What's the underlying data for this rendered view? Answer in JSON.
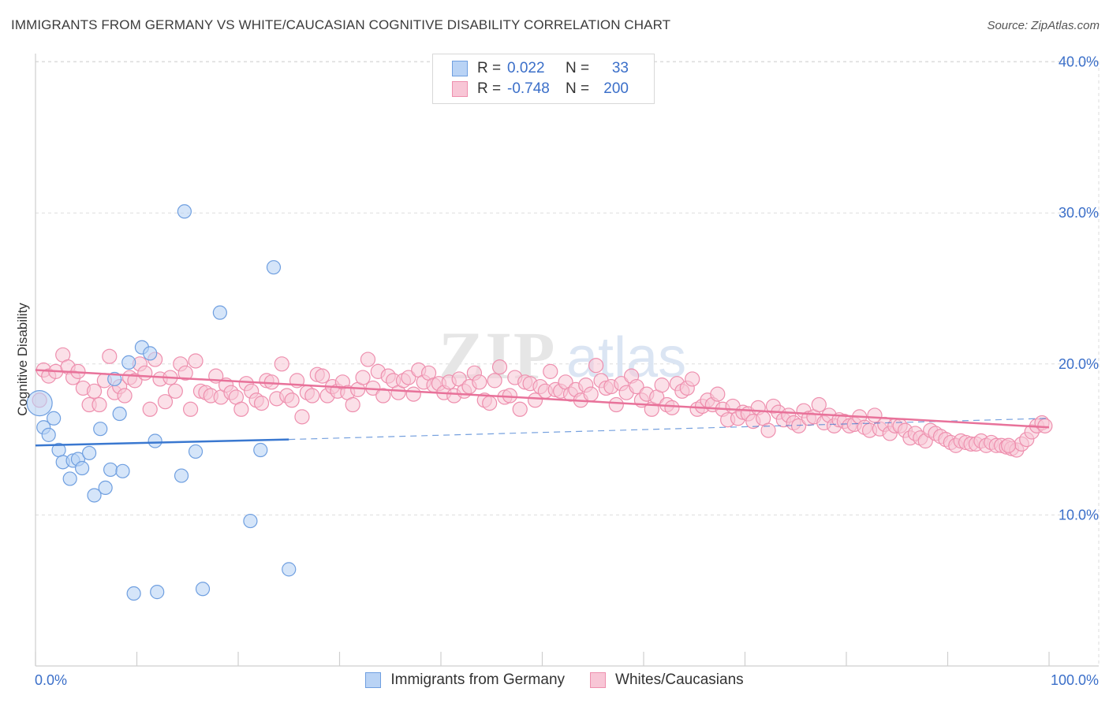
{
  "title": "IMMIGRANTS FROM GERMANY VS WHITE/CAUCASIAN COGNITIVE DISABILITY CORRELATION CHART",
  "source": "Source: ZipAtlas.com",
  "watermark": {
    "zip": "ZIP",
    "atlas": "atlas"
  },
  "legend": {
    "rows": [
      {
        "r_label": "R =",
        "r_value": "0.022",
        "n_label": "N =",
        "n_value": "33"
      },
      {
        "r_label": "R =",
        "r_value": "-0.748",
        "n_label": "N =",
        "n_value": "200"
      }
    ]
  },
  "colors": {
    "blue_fill": "#b9d3f5",
    "blue_stroke": "#6f9fe0",
    "blue_line": "#3a78d0",
    "pink_fill": "#f8c6d6",
    "pink_stroke": "#ee8fae",
    "pink_line": "#e8729a",
    "axis_label": "#3b6fc9",
    "grid": "#dddddd"
  },
  "chart_data": {
    "type": "scatter",
    "title": "IMMIGRANTS FROM GERMANY VS WHITE/CAUCASIAN COGNITIVE DISABILITY CORRELATION CHART",
    "xlabel": "",
    "ylabel": "Cognitive Disability",
    "xlim": [
      0,
      100
    ],
    "ylim": [
      0,
      42
    ],
    "x_tick_labels": [
      "0.0%",
      "100.0%"
    ],
    "y_ticks": [
      10,
      20,
      30,
      40
    ],
    "y_tick_labels": [
      "10.0%",
      "20.0%",
      "30.0%",
      "40.0%"
    ],
    "grid": true,
    "series": [
      {
        "name": "Immigrants from Germany",
        "r": 0.022,
        "n": 33,
        "points": [
          [
            0.4,
            17.4
          ],
          [
            0.8,
            15.8
          ],
          [
            1.3,
            15.3
          ],
          [
            1.8,
            16.4
          ],
          [
            2.3,
            14.3
          ],
          [
            2.7,
            13.5
          ],
          [
            3.4,
            12.4
          ],
          [
            3.7,
            13.6
          ],
          [
            4.2,
            13.7
          ],
          [
            4.6,
            13.1
          ],
          [
            5.3,
            14.1
          ],
          [
            5.8,
            11.3
          ],
          [
            6.4,
            15.7
          ],
          [
            6.9,
            11.8
          ],
          [
            7.4,
            13.0
          ],
          [
            7.8,
            19.0
          ],
          [
            8.3,
            16.7
          ],
          [
            8.6,
            12.9
          ],
          [
            9.2,
            20.1
          ],
          [
            9.7,
            4.8
          ],
          [
            10.5,
            21.1
          ],
          [
            11.3,
            20.7
          ],
          [
            12.0,
            4.9
          ],
          [
            11.8,
            14.9
          ],
          [
            14.4,
            12.6
          ],
          [
            14.7,
            30.1
          ],
          [
            15.8,
            14.2
          ],
          [
            16.5,
            5.1
          ],
          [
            18.2,
            23.4
          ],
          [
            21.2,
            9.6
          ],
          [
            22.2,
            14.3
          ],
          [
            23.5,
            26.4
          ],
          [
            25.0,
            6.4
          ]
        ],
        "trend": {
          "x": [
            0,
            25
          ],
          "y": [
            14.6,
            15.0
          ],
          "dashed_to": [
            100,
            16.4
          ]
        }
      },
      {
        "name": "Whites/Caucasians",
        "r": -0.748,
        "n": 200,
        "points": [
          [
            0.4,
            17.6
          ],
          [
            0.8,
            19.6
          ],
          [
            1.3,
            19.2
          ],
          [
            2.0,
            19.5
          ],
          [
            2.7,
            20.6
          ],
          [
            3.2,
            19.8
          ],
          [
            3.7,
            19.1
          ],
          [
            4.2,
            19.5
          ],
          [
            4.7,
            18.4
          ],
          [
            5.3,
            17.3
          ],
          [
            5.8,
            18.2
          ],
          [
            6.3,
            17.3
          ],
          [
            6.8,
            18.9
          ],
          [
            7.3,
            20.5
          ],
          [
            7.8,
            18.1
          ],
          [
            8.3,
            18.5
          ],
          [
            8.8,
            17.9
          ],
          [
            9.3,
            19.1
          ],
          [
            9.8,
            18.9
          ],
          [
            10.3,
            20.0
          ],
          [
            10.8,
            19.4
          ],
          [
            11.3,
            17.0
          ],
          [
            11.8,
            20.3
          ],
          [
            12.3,
            19.0
          ],
          [
            12.8,
            17.5
          ],
          [
            13.3,
            19.1
          ],
          [
            13.8,
            18.2
          ],
          [
            14.3,
            20.0
          ],
          [
            14.8,
            19.4
          ],
          [
            15.3,
            17.0
          ],
          [
            15.8,
            20.2
          ],
          [
            16.3,
            18.2
          ],
          [
            16.8,
            18.1
          ],
          [
            17.3,
            17.9
          ],
          [
            17.8,
            19.2
          ],
          [
            18.3,
            17.8
          ],
          [
            18.8,
            18.6
          ],
          [
            19.3,
            18.1
          ],
          [
            19.8,
            17.8
          ],
          [
            20.3,
            17.0
          ],
          [
            20.8,
            18.7
          ],
          [
            21.3,
            18.2
          ],
          [
            21.8,
            17.6
          ],
          [
            22.3,
            17.4
          ],
          [
            22.8,
            18.9
          ],
          [
            23.3,
            18.8
          ],
          [
            23.8,
            17.7
          ],
          [
            24.3,
            20.0
          ],
          [
            24.8,
            17.9
          ],
          [
            25.3,
            17.6
          ],
          [
            25.8,
            18.9
          ],
          [
            26.3,
            16.5
          ],
          [
            26.8,
            18.1
          ],
          [
            27.3,
            17.9
          ],
          [
            27.8,
            19.3
          ],
          [
            28.3,
            19.2
          ],
          [
            28.8,
            17.9
          ],
          [
            29.3,
            18.5
          ],
          [
            29.8,
            18.2
          ],
          [
            30.3,
            18.8
          ],
          [
            30.8,
            18.1
          ],
          [
            31.3,
            17.3
          ],
          [
            31.8,
            18.3
          ],
          [
            32.3,
            19.1
          ],
          [
            32.8,
            20.3
          ],
          [
            33.3,
            18.4
          ],
          [
            33.8,
            19.5
          ],
          [
            34.3,
            17.9
          ],
          [
            34.8,
            19.2
          ],
          [
            35.3,
            18.9
          ],
          [
            35.8,
            18.1
          ],
          [
            36.3,
            18.9
          ],
          [
            36.8,
            19.1
          ],
          [
            37.3,
            18.0
          ],
          [
            37.8,
            19.6
          ],
          [
            38.3,
            18.8
          ],
          [
            38.8,
            19.4
          ],
          [
            39.3,
            18.6
          ],
          [
            39.8,
            18.7
          ],
          [
            40.3,
            18.1
          ],
          [
            40.8,
            18.8
          ],
          [
            41.3,
            17.9
          ],
          [
            41.8,
            19.0
          ],
          [
            42.3,
            18.2
          ],
          [
            42.8,
            18.5
          ],
          [
            43.3,
            19.4
          ],
          [
            43.8,
            18.8
          ],
          [
            44.3,
            17.6
          ],
          [
            44.8,
            17.4
          ],
          [
            45.3,
            18.9
          ],
          [
            45.8,
            19.8
          ],
          [
            46.3,
            17.8
          ],
          [
            46.8,
            17.9
          ],
          [
            47.3,
            19.1
          ],
          [
            47.8,
            17.0
          ],
          [
            48.3,
            18.8
          ],
          [
            48.8,
            18.7
          ],
          [
            49.3,
            17.6
          ],
          [
            49.8,
            18.5
          ],
          [
            50.3,
            18.2
          ],
          [
            50.8,
            19.5
          ],
          [
            51.3,
            18.3
          ],
          [
            51.8,
            18.2
          ],
          [
            52.3,
            18.8
          ],
          [
            52.8,
            18.0
          ],
          [
            53.3,
            18.3
          ],
          [
            53.8,
            17.6
          ],
          [
            54.3,
            18.6
          ],
          [
            54.8,
            18.0
          ],
          [
            55.3,
            19.9
          ],
          [
            55.8,
            18.9
          ],
          [
            56.3,
            18.4
          ],
          [
            56.8,
            18.5
          ],
          [
            57.3,
            17.3
          ],
          [
            57.8,
            18.7
          ],
          [
            58.3,
            18.1
          ],
          [
            58.8,
            19.2
          ],
          [
            59.3,
            18.5
          ],
          [
            59.8,
            17.6
          ],
          [
            60.3,
            18.0
          ],
          [
            60.8,
            17.0
          ],
          [
            61.3,
            17.8
          ],
          [
            61.8,
            18.6
          ],
          [
            62.3,
            17.3
          ],
          [
            62.8,
            17.1
          ],
          [
            63.3,
            18.7
          ],
          [
            63.8,
            18.2
          ],
          [
            64.3,
            18.4
          ],
          [
            64.8,
            19.0
          ],
          [
            65.3,
            17.0
          ],
          [
            65.8,
            17.2
          ],
          [
            66.3,
            17.6
          ],
          [
            66.8,
            17.3
          ],
          [
            67.3,
            18.0
          ],
          [
            67.8,
            17.0
          ],
          [
            68.3,
            16.3
          ],
          [
            68.8,
            17.2
          ],
          [
            69.3,
            16.4
          ],
          [
            69.8,
            16.8
          ],
          [
            70.3,
            16.7
          ],
          [
            70.8,
            16.2
          ],
          [
            71.3,
            17.1
          ],
          [
            71.8,
            16.4
          ],
          [
            72.3,
            15.6
          ],
          [
            72.8,
            17.2
          ],
          [
            73.3,
            16.8
          ],
          [
            73.8,
            16.3
          ],
          [
            74.3,
            16.6
          ],
          [
            74.8,
            16.1
          ],
          [
            75.3,
            15.9
          ],
          [
            75.8,
            16.9
          ],
          [
            76.3,
            16.4
          ],
          [
            76.8,
            16.5
          ],
          [
            77.3,
            17.3
          ],
          [
            77.8,
            16.1
          ],
          [
            78.3,
            16.6
          ],
          [
            78.8,
            15.9
          ],
          [
            79.3,
            16.3
          ],
          [
            79.8,
            16.2
          ],
          [
            80.3,
            15.9
          ],
          [
            80.8,
            16.0
          ],
          [
            81.3,
            16.5
          ],
          [
            81.8,
            15.8
          ],
          [
            82.3,
            15.6
          ],
          [
            82.8,
            16.6
          ],
          [
            83.3,
            15.7
          ],
          [
            83.8,
            16.0
          ],
          [
            84.3,
            15.4
          ],
          [
            84.8,
            15.9
          ],
          [
            85.3,
            15.9
          ],
          [
            85.8,
            15.6
          ],
          [
            86.3,
            15.1
          ],
          [
            86.8,
            15.4
          ],
          [
            87.3,
            15.1
          ],
          [
            87.8,
            14.9
          ],
          [
            88.3,
            15.6
          ],
          [
            88.8,
            15.4
          ],
          [
            89.3,
            15.2
          ],
          [
            89.8,
            15.0
          ],
          [
            90.3,
            14.8
          ],
          [
            90.8,
            14.6
          ],
          [
            91.3,
            14.9
          ],
          [
            91.8,
            14.8
          ],
          [
            92.3,
            14.7
          ],
          [
            92.8,
            14.7
          ],
          [
            93.3,
            14.9
          ],
          [
            93.8,
            14.6
          ],
          [
            94.3,
            14.8
          ],
          [
            94.8,
            14.6
          ],
          [
            95.3,
            14.6
          ],
          [
            95.8,
            14.5
          ],
          [
            96.3,
            14.4
          ],
          [
            96.8,
            14.3
          ],
          [
            97.3,
            14.7
          ],
          [
            97.8,
            15.0
          ],
          [
            98.3,
            15.5
          ],
          [
            98.8,
            15.9
          ],
          [
            99.3,
            16.1
          ],
          [
            96.0,
            14.6
          ],
          [
            99.6,
            15.9
          ]
        ],
        "trend": {
          "x": [
            0,
            100
          ],
          "y": [
            19.6,
            15.8
          ]
        }
      }
    ],
    "legend_entries": [
      "Immigrants from Germany",
      "Whites/Caucasians"
    ]
  }
}
